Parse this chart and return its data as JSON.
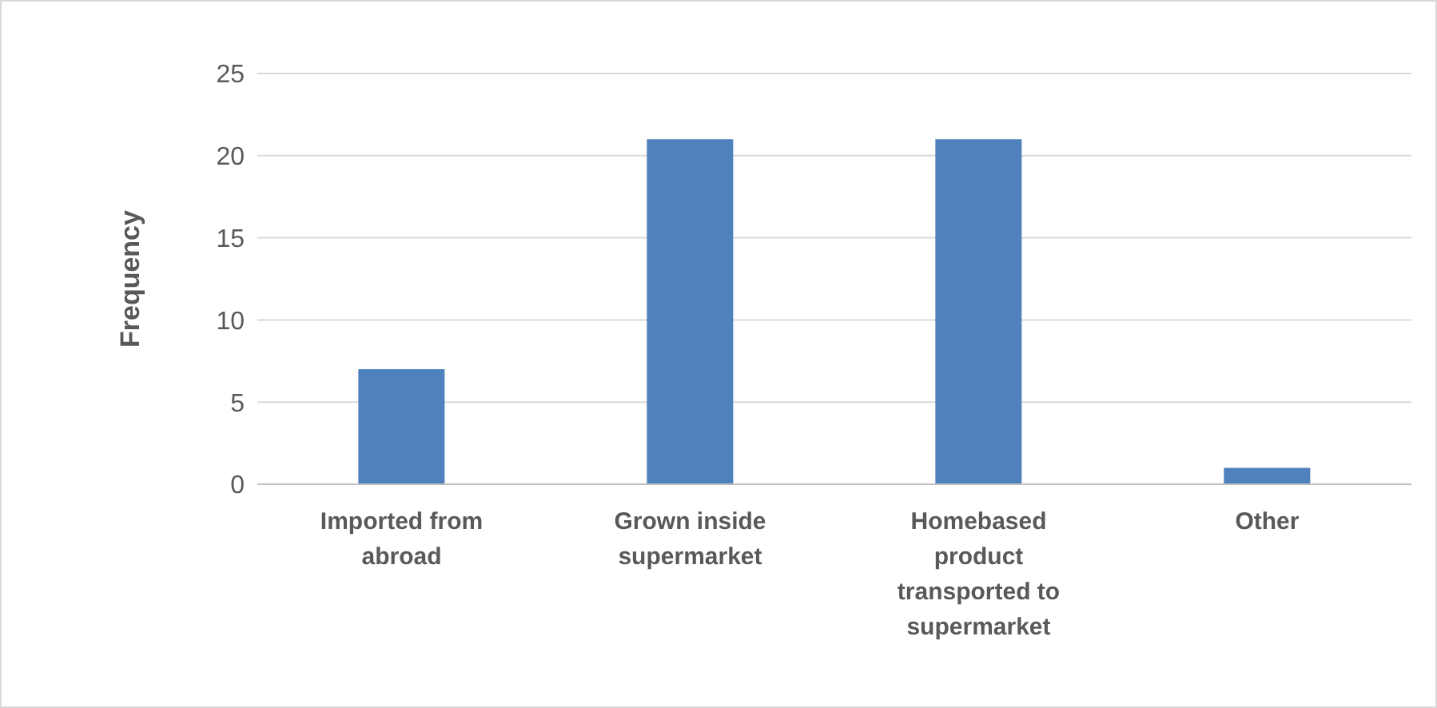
{
  "chart_data": {
    "type": "bar",
    "ylabel": "Frequency",
    "categories": [
      "Imported from abroad",
      "Grown inside supermarket",
      "Homebased product transported to supermarket",
      "Other"
    ],
    "values": [
      7,
      21,
      21,
      1
    ],
    "color": "#4f81bd",
    "ylim": [
      0,
      25
    ],
    "yticks": [
      0,
      5,
      10,
      15,
      20,
      25
    ],
    "grid": "y"
  }
}
